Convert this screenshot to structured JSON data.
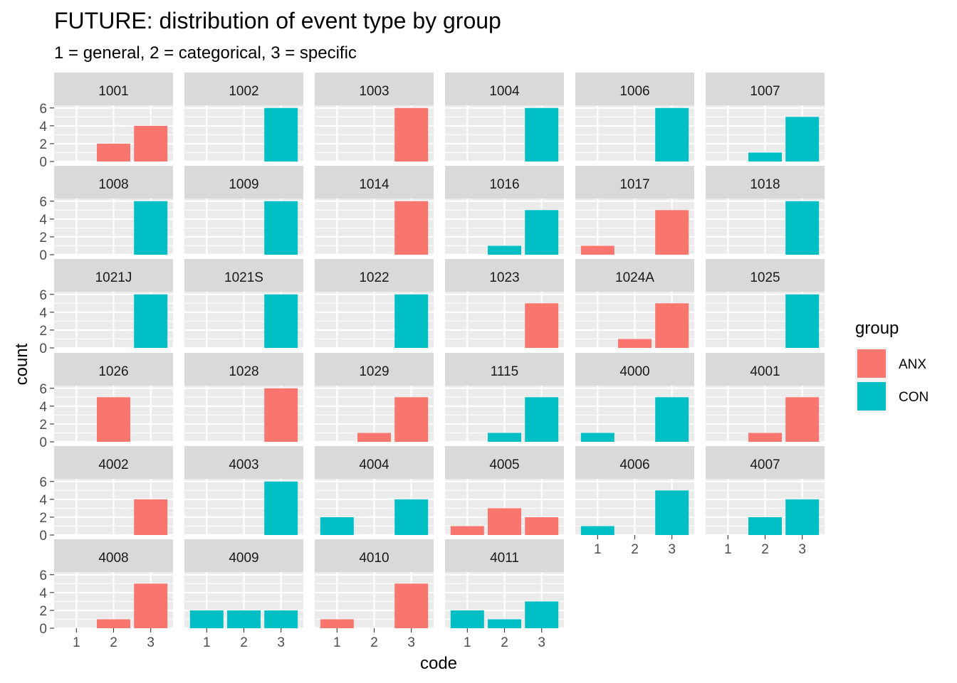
{
  "chart_data": {
    "type": "bar",
    "title": "FUTURE: distribution of event type by group",
    "subtitle": "1 = general, 2 = categorical, 3 = specific",
    "xlabel": "code",
    "ylabel": "count",
    "categories": [
      "1",
      "2",
      "3"
    ],
    "ylim": [
      0,
      6.3
    ],
    "yticks": [
      0,
      2,
      4,
      6
    ],
    "grid": true,
    "legend": {
      "title": "group",
      "position": "right",
      "entries": [
        {
          "name": "ANX",
          "color": "#F8766D"
        },
        {
          "name": "CON",
          "color": "#00BFC4"
        }
      ]
    },
    "colors": {
      "ANX": "#F8766D",
      "CON": "#00BFC4",
      "panel_bg": "#EBEBEB",
      "strip_bg": "#D9D9D9"
    },
    "panels": [
      {
        "id": "1001",
        "group": "ANX",
        "values": [
          0,
          2,
          4
        ]
      },
      {
        "id": "1002",
        "group": "CON",
        "values": [
          0,
          0,
          6
        ]
      },
      {
        "id": "1003",
        "group": "ANX",
        "values": [
          0,
          0,
          6
        ]
      },
      {
        "id": "1004",
        "group": "CON",
        "values": [
          0,
          0,
          6
        ]
      },
      {
        "id": "1006",
        "group": "CON",
        "values": [
          0,
          0,
          6
        ]
      },
      {
        "id": "1007",
        "group": "CON",
        "values": [
          0,
          1,
          5
        ]
      },
      {
        "id": "1008",
        "group": "CON",
        "values": [
          0,
          0,
          6
        ]
      },
      {
        "id": "1009",
        "group": "CON",
        "values": [
          0,
          0,
          6
        ]
      },
      {
        "id": "1014",
        "group": "ANX",
        "values": [
          0,
          0,
          6
        ]
      },
      {
        "id": "1016",
        "group": "CON",
        "values": [
          0,
          1,
          5
        ]
      },
      {
        "id": "1017",
        "group": "ANX",
        "values": [
          1,
          0,
          5
        ]
      },
      {
        "id": "1018",
        "group": "CON",
        "values": [
          0,
          0,
          6
        ]
      },
      {
        "id": "1021J",
        "group": "CON",
        "values": [
          0,
          0,
          6
        ]
      },
      {
        "id": "1021S",
        "group": "CON",
        "values": [
          0,
          0,
          6
        ]
      },
      {
        "id": "1022",
        "group": "CON",
        "values": [
          0,
          0,
          6
        ]
      },
      {
        "id": "1023",
        "group": "ANX",
        "values": [
          0,
          0,
          5
        ]
      },
      {
        "id": "1024A",
        "group": "ANX",
        "values": [
          0,
          1,
          5
        ]
      },
      {
        "id": "1025",
        "group": "CON",
        "values": [
          0,
          0,
          6
        ]
      },
      {
        "id": "1026",
        "group": "ANX",
        "values": [
          0,
          5,
          0
        ]
      },
      {
        "id": "1028",
        "group": "ANX",
        "values": [
          0,
          0,
          6
        ]
      },
      {
        "id": "1029",
        "group": "ANX",
        "values": [
          0,
          1,
          5
        ]
      },
      {
        "id": "1115",
        "group": "CON",
        "values": [
          0,
          1,
          5
        ]
      },
      {
        "id": "4000",
        "group": "CON",
        "values": [
          1,
          0,
          5
        ]
      },
      {
        "id": "4001",
        "group": "ANX",
        "values": [
          0,
          1,
          5
        ]
      },
      {
        "id": "4002",
        "group": "ANX",
        "values": [
          0,
          0,
          4
        ]
      },
      {
        "id": "4003",
        "group": "CON",
        "values": [
          0,
          0,
          6
        ]
      },
      {
        "id": "4004",
        "group": "CON",
        "values": [
          2,
          0,
          4
        ]
      },
      {
        "id": "4005",
        "group": "ANX",
        "values": [
          1,
          3,
          2
        ]
      },
      {
        "id": "4006",
        "group": "CON",
        "values": [
          1,
          0,
          5
        ]
      },
      {
        "id": "4007",
        "group": "CON",
        "values": [
          0,
          2,
          4
        ]
      },
      {
        "id": "4008",
        "group": "ANX",
        "values": [
          0,
          1,
          5
        ]
      },
      {
        "id": "4009",
        "group": "CON",
        "values": [
          2,
          2,
          2
        ]
      },
      {
        "id": "4010",
        "group": "ANX",
        "values": [
          1,
          0,
          5
        ]
      },
      {
        "id": "4011",
        "group": "CON",
        "values": [
          2,
          1,
          3
        ]
      }
    ]
  }
}
